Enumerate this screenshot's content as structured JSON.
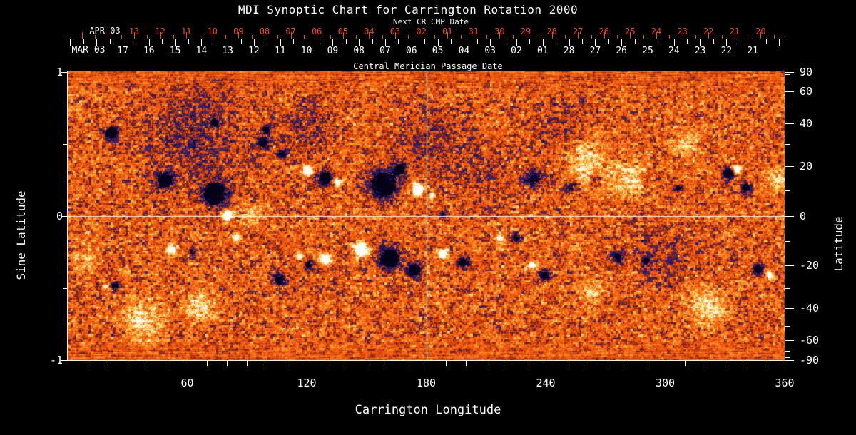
{
  "title": "MDI Synoptic Chart for Carrington Rotation 2000",
  "colors": {
    "background": "#000000",
    "foreground": "#ffffff",
    "axis_red": "#f04a1c",
    "quiet_sun_orange": "#e6500f",
    "negative_polarity_navy": "#140f4e",
    "positive_polarity_white": "#ffffff"
  },
  "axes": {
    "next_cr": {
      "label": "Next CR CMP Date",
      "month_anchor": "APR 03",
      "days": [
        "13",
        "12",
        "11",
        "10",
        "09",
        "08",
        "07",
        "06",
        "05",
        "04",
        "03",
        "02",
        "01",
        "31",
        "30",
        "29",
        "28",
        "27",
        "26",
        "25",
        "24",
        "23",
        "22",
        "21",
        "20"
      ]
    },
    "cmp": {
      "title": "Central Meridian Passage Date",
      "month_anchor": "MAR 03",
      "days": [
        "17",
        "16",
        "15",
        "14",
        "13",
        "12",
        "11",
        "10",
        "09",
        "08",
        "07",
        "06",
        "05",
        "04",
        "03",
        "02",
        "01",
        "28",
        "27",
        "26",
        "25",
        "24",
        "23",
        "22",
        "21"
      ]
    },
    "bottom": {
      "title": "Carrington Longitude",
      "tick_values": [
        60,
        120,
        180,
        240,
        300,
        360
      ],
      "minor_step_deg": 10,
      "range": [
        0,
        360
      ]
    },
    "left": {
      "title": "Sine Latitude",
      "tick_values": [
        1,
        0,
        -1
      ],
      "minor_step": 0.25,
      "range": [
        1,
        -1
      ]
    },
    "right": {
      "title": "Latitude",
      "labeled_values": [
        90,
        60,
        40,
        20,
        0,
        -20,
        -40,
        -60,
        -90
      ],
      "tick_step_deg": 10,
      "scale": "sine"
    }
  },
  "chart_data": {
    "type": "heatmap",
    "title": "MDI Synoptic Chart for Carrington Rotation 2000",
    "xlabel": "Carrington Longitude",
    "ylabel_left": "Sine Latitude",
    "ylabel_right": "Latitude",
    "x_range": [
      0,
      360
    ],
    "y_range_sine_latitude": [
      -1,
      1
    ],
    "crosshair": {
      "longitude": 180,
      "sine_latitude": 0
    },
    "colormap_stops": [
      [
        -1.0,
        "#030216"
      ],
      [
        -0.72,
        "#140f4e"
      ],
      [
        -0.5,
        "#2b2287"
      ],
      [
        -0.36,
        "#4a1f55"
      ],
      [
        -0.26,
        "#7e2410"
      ],
      [
        -0.1,
        "#cf400c"
      ],
      [
        0.0,
        "#e6500f"
      ],
      [
        0.2,
        "#f96a12"
      ],
      [
        0.4,
        "#ff9630"
      ],
      [
        0.6,
        "#ffd24f"
      ],
      [
        0.78,
        "#fff0b5"
      ],
      [
        1.0,
        "#ffffff"
      ]
    ],
    "features_note": "approximate active-region features read from the image: [carrington_longitude_deg, sine_latitude, radius_deg, polarity_strength] (negative = dark/navy flux, positive = white/bright flux, |p|<0.5 = diffuse patch)",
    "features": [
      [
        21.5,
        0.58,
        4.3,
        -1
      ],
      [
        48.4,
        0.25,
        5,
        -1
      ],
      [
        73.4,
        0.16,
        7.9,
        -1
      ],
      [
        79.9,
        0.01,
        3.6,
        1
      ],
      [
        97.8,
        0.51,
        3.6,
        -0.8
      ],
      [
        107.5,
        0.43,
        2.9,
        -0.7
      ],
      [
        129,
        0.27,
        4.3,
        -1
      ],
      [
        120,
        0.32,
        3.2,
        1
      ],
      [
        135,
        0.24,
        2.5,
        0.9
      ],
      [
        158.3,
        0.22,
        9.3,
        -1
      ],
      [
        175.5,
        0.19,
        4.3,
        1
      ],
      [
        182.7,
        0.15,
        2.1,
        0.8
      ],
      [
        166.6,
        0.33,
        3.6,
        -0.9
      ],
      [
        188.1,
        0.01,
        2.9,
        -0.6
      ],
      [
        161.2,
        -0.29,
        7.2,
        -1
      ],
      [
        173.7,
        -0.37,
        5,
        -0.9
      ],
      [
        146.9,
        -0.23,
        4.7,
        1
      ],
      [
        129,
        -0.3,
        3.6,
        0.9
      ],
      [
        188.1,
        -0.26,
        3.2,
        0.9
      ],
      [
        198.1,
        -0.32,
        3.6,
        -0.8
      ],
      [
        216.7,
        -0.15,
        2.5,
        0.8
      ],
      [
        224.6,
        -0.15,
        2.9,
        -0.7
      ],
      [
        232.8,
        -0.34,
        2.9,
        0.8
      ],
      [
        238.9,
        -0.41,
        3.6,
        -0.8
      ],
      [
        233.9,
        0.26,
        5.7,
        -0.6
      ],
      [
        252.5,
        0.21,
        4.3,
        -0.6
      ],
      [
        265.1,
        0.26,
        3.6,
        -0.5
      ],
      [
        275.8,
        -0.28,
        4.3,
        -0.6
      ],
      [
        290.1,
        -0.31,
        2.9,
        -0.6
      ],
      [
        306.3,
        0.2,
        2.5,
        -0.7
      ],
      [
        331.3,
        0.3,
        3.6,
        -0.9
      ],
      [
        335.6,
        0.33,
        2.5,
        0.9
      ],
      [
        340.3,
        0.2,
        3.2,
        -0.9
      ],
      [
        346.4,
        -0.37,
        3.6,
        -0.8
      ],
      [
        352.1,
        -0.41,
        2.5,
        0.8
      ],
      [
        23.3,
        -0.48,
        2.9,
        -0.8
      ],
      [
        19,
        -0.49,
        1.8,
        0.7
      ],
      [
        51.9,
        -0.23,
        3.2,
        0.9
      ],
      [
        62,
        -0.25,
        2.5,
        -0.6
      ],
      [
        84.2,
        -0.15,
        2.5,
        0.8
      ],
      [
        105.7,
        -0.44,
        4.3,
        -0.7
      ],
      [
        120.7,
        -0.34,
        3.2,
        -0.7
      ],
      [
        116.4,
        -0.27,
        2.5,
        0.7
      ],
      [
        99.2,
        0.6,
        3.2,
        -0.7
      ],
      [
        73.4,
        0.65,
        2.9,
        -0.6
      ],
      [
        259.7,
        0.38,
        16.1,
        0.5
      ],
      [
        281.2,
        0.26,
        10.7,
        0.45
      ],
      [
        37.6,
        -0.73,
        12.5,
        0.5
      ],
      [
        66.3,
        -0.63,
        10.7,
        0.45
      ],
      [
        320.6,
        -0.63,
        12.5,
        0.45
      ],
      [
        309.8,
        0.51,
        9,
        0.35
      ],
      [
        263.3,
        -0.53,
        7.9,
        0.4
      ],
      [
        91.3,
        0.01,
        6.4,
        0.35
      ],
      [
        9,
        -0.29,
        7.2,
        0.35
      ],
      [
        356.4,
        0.26,
        7.2,
        0.4
      ],
      [
        62.7,
        0.58,
        32,
        -0.28
      ],
      [
        120,
        0.61,
        17.9,
        -0.22
      ],
      [
        180.9,
        0.51,
        21.5,
        -0.2
      ],
      [
        252,
        0.55,
        25,
        -0.18
      ],
      [
        208,
        0.3,
        20,
        -0.15
      ],
      [
        300,
        -0.25,
        20,
        -0.18
      ]
    ]
  }
}
